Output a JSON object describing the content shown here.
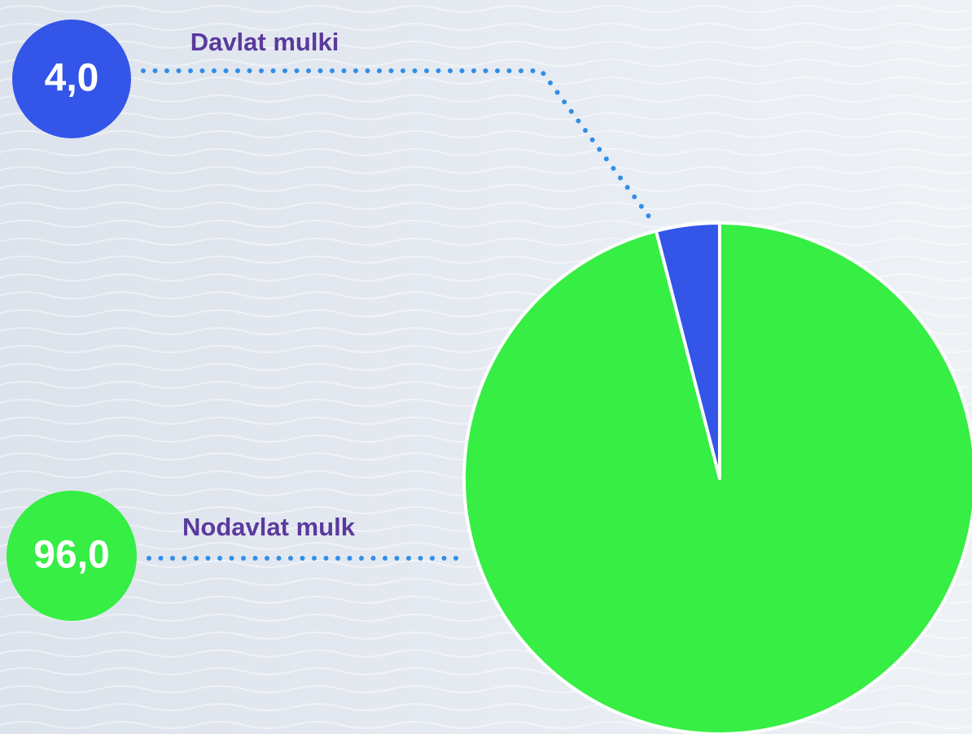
{
  "chart_data": {
    "type": "pie",
    "categories": [
      "Davlat mulki",
      "Nodavlat mulk"
    ],
    "values": [
      4,
      96
    ],
    "value_labels": [
      "4,0",
      "96,0"
    ],
    "colors": [
      "#3355e8",
      "#36ee44"
    ]
  }
}
